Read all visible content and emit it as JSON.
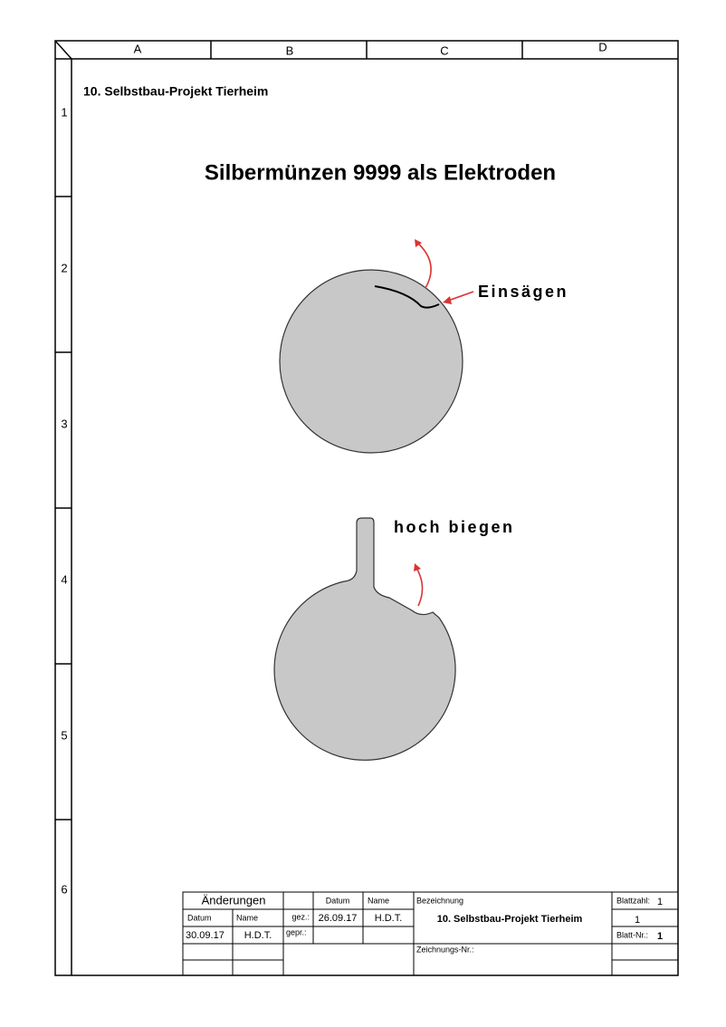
{
  "frame": {
    "columns": [
      "A",
      "B",
      "C",
      "D"
    ],
    "rows": [
      "1",
      "2",
      "3",
      "4",
      "5",
      "6"
    ]
  },
  "header": {
    "project": "10. Selbstbau-Projekt Tierheim",
    "title": "Silbermünzen 9999 als Elektroden"
  },
  "labels": {
    "cut": "Einsägen",
    "bend": "hoch biegen"
  },
  "title_block": {
    "changes": "Änderungen",
    "date_head": "Datum",
    "name_head": "Name",
    "drawn": "gez.:",
    "drawn_date_head": "Datum",
    "drawn_name_head": "Name",
    "drawn_date": "26.09.17",
    "drawn_name": "H.D.T.",
    "checked": "gepr.:",
    "change_date": "30.09.17",
    "change_name": "H.D.T.",
    "designation_head": "Bezeichnung",
    "designation": "10. Selbstbau-Projekt Tierheim",
    "sheet_count_label": "Blattzahl:",
    "sheet_count": "1",
    "sheet_count_2": "1",
    "sheet_no_label": "Blatt-Nr.:",
    "sheet_no": "1",
    "drawing_no_label": "Zeichnungs-Nr.:"
  }
}
